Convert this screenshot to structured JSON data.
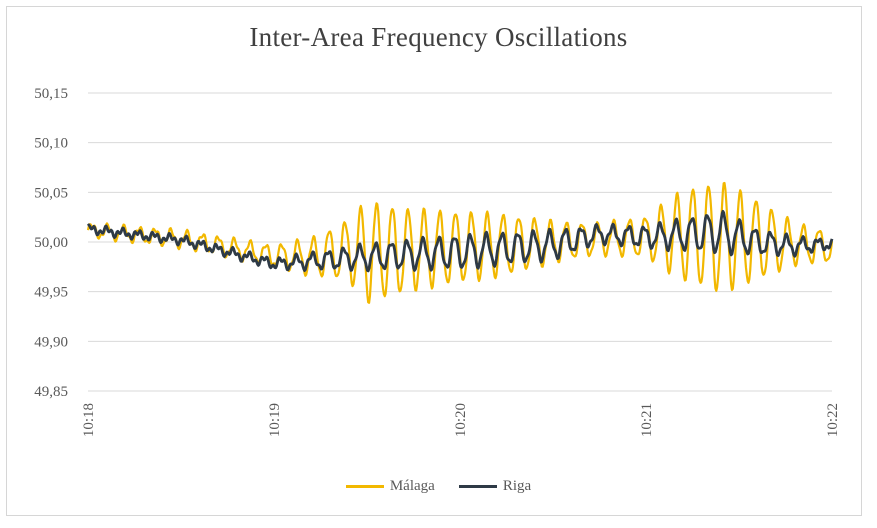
{
  "chart_data": {
    "type": "line",
    "title": "Inter-Area Frequency Oscillations",
    "xlabel": "",
    "ylabel": "",
    "x_ticks": [
      "10:18",
      "10:19",
      "10:20",
      "10:21",
      "10:22"
    ],
    "y_ticks": [
      "50,15",
      "50,10",
      "50,05",
      "50,00",
      "49,95",
      "49,90",
      "49,85"
    ],
    "ylim": [
      49.85,
      50.15
    ],
    "xlim_minutes": [
      0,
      4
    ],
    "grid": "horizontal",
    "legend_position": "bottom",
    "series": [
      {
        "name": "Málaga",
        "color": "#F2B800",
        "envelope_minutes": [
          0,
          0.5,
          1.0,
          1.2,
          1.4,
          1.5,
          1.75,
          2.0,
          2.25,
          2.5,
          2.75,
          3.0,
          3.2,
          3.4,
          3.6,
          3.8,
          4.0
        ],
        "baseline": [
          50.012,
          50.003,
          49.986,
          49.985,
          49.992,
          49.99,
          49.992,
          49.995,
          49.997,
          50.0,
          50.003,
          50.005,
          50.007,
          50.005,
          50.002,
          49.998,
          49.995
        ],
        "amplitude": [
          0.006,
          0.008,
          0.01,
          0.018,
          0.03,
          0.05,
          0.04,
          0.035,
          0.03,
          0.02,
          0.015,
          0.02,
          0.045,
          0.055,
          0.04,
          0.02,
          0.015
        ],
        "period_minutes": 0.085
      },
      {
        "name": "Riga",
        "color": "#2E3A46",
        "envelope_minutes": [
          0,
          0.5,
          1.0,
          1.5,
          2.0,
          2.5,
          2.75,
          3.0,
          3.4,
          3.6,
          3.8,
          4.0
        ],
        "baseline": [
          50.013,
          50.002,
          49.978,
          49.985,
          49.99,
          49.997,
          50.008,
          50.005,
          50.01,
          50.0,
          49.996,
          49.998
        ],
        "amplitude": [
          0.003,
          0.003,
          0.004,
          0.012,
          0.016,
          0.014,
          0.008,
          0.01,
          0.02,
          0.012,
          0.008,
          0.004
        ],
        "period_minutes": 0.085
      }
    ]
  }
}
